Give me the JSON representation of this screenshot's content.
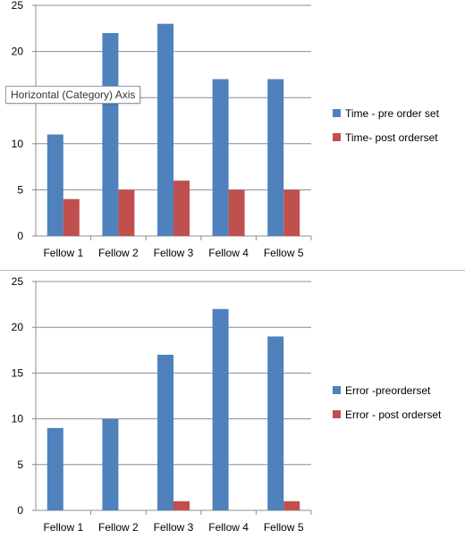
{
  "chart_data": [
    {
      "type": "bar",
      "categories": [
        "Fellow 1",
        "Fellow 2",
        "Fellow 3",
        "Fellow 4",
        "Fellow 5"
      ],
      "series": [
        {
          "name": "Time - pre order set",
          "values": [
            11,
            22,
            23,
            17,
            17
          ],
          "color": "#4F81BD"
        },
        {
          "name": "Time- post orderset",
          "values": [
            4,
            5,
            6,
            5,
            5
          ],
          "color": "#C0504D"
        }
      ],
      "ylim": [
        0,
        25
      ],
      "yticks": [
        0,
        5,
        10,
        15,
        20,
        25
      ],
      "grid": true,
      "legend": "right"
    },
    {
      "type": "bar",
      "categories": [
        "Fellow 1",
        "Fellow 2",
        "Fellow 3",
        "Fellow 4",
        "Fellow 5"
      ],
      "series": [
        {
          "name": "Error -preorderset",
          "values": [
            9,
            10,
            17,
            22,
            19
          ],
          "color": "#4F81BD"
        },
        {
          "name": "Error - post orderset",
          "values": [
            0,
            0,
            1,
            0,
            1
          ],
          "color": "#C0504D"
        }
      ],
      "ylim": [
        0,
        25
      ],
      "yticks": [
        0,
        5,
        10,
        15,
        20,
        25
      ],
      "grid": true,
      "legend": "right"
    }
  ],
  "tooltip": {
    "text": "Horizontal (Category) Axis"
  }
}
